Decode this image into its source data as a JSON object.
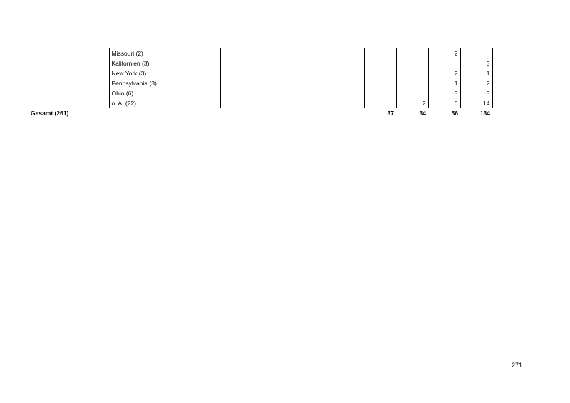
{
  "table": {
    "rows": [
      {
        "label": "Missouri (2)",
        "c3": "",
        "c4": "",
        "c5": "2",
        "c6": ""
      },
      {
        "label": "Kalifornien (3)",
        "c3": "",
        "c4": "",
        "c5": "",
        "c6": "3"
      },
      {
        "label": "New York (3)",
        "c3": "",
        "c4": "",
        "c5": "2",
        "c6": "1"
      },
      {
        "label": "Pennsylvania (3)",
        "c3": "",
        "c4": "",
        "c5": "1",
        "c6": "2"
      },
      {
        "label": "Ohio (6)",
        "c3": "",
        "c4": "",
        "c5": "3",
        "c6": "3"
      },
      {
        "label": "o. A. (22)",
        "c3": "",
        "c4": "2",
        "c5": "6",
        "c6": "14"
      }
    ],
    "total": {
      "label": "Gesamt (261)",
      "c3": "37",
      "c4": "34",
      "c5": "56",
      "c6": "134"
    }
  },
  "page_number": "271"
}
